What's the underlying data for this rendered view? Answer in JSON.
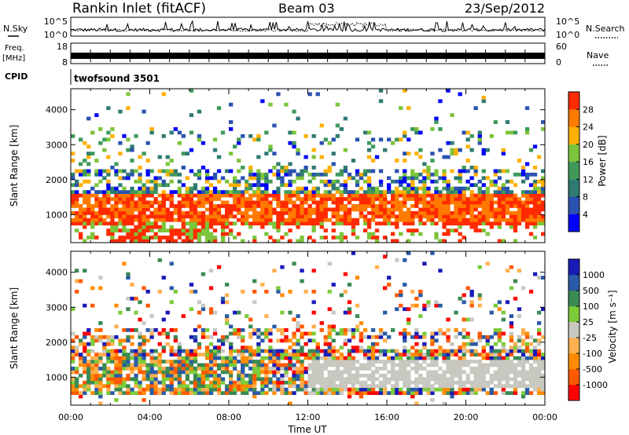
{
  "header": {
    "title": "Rankin Inlet (fitACF)",
    "beam": "Beam 03",
    "date": "23/Sep/2012"
  },
  "noise_panel": {
    "left_label": "N.Sky",
    "right_label": "N.Search",
    "ticks_left": [
      "10^5",
      "10^0"
    ],
    "ticks_right": [
      "10^5",
      "10^0"
    ]
  },
  "freq_panel": {
    "left_label_1": "Freq.",
    "left_label_2": "[MHz]",
    "right_label": "Nave",
    "ticks_left": [
      "18",
      "8"
    ],
    "ticks_right": [
      "60",
      "0"
    ]
  },
  "cpid": {
    "label": "CPID",
    "value": "twofsound 3501"
  },
  "chart_data": [
    {
      "type": "heatmap",
      "name": "power",
      "ylabel": "Slant Range [km]",
      "y_ticks": [
        1000,
        2000,
        3000,
        4000
      ],
      "ylim": [
        200,
        4600
      ],
      "xlim_hours": [
        0,
        24
      ],
      "colorbar_label": "Power [dB]",
      "colorbar_ticks": [
        "4",
        "8",
        "12",
        "16",
        "20",
        "24",
        "28"
      ],
      "colorbar_colors": [
        "#0000ff",
        "#2a52b0",
        "#2f7a72",
        "#3f9a5a",
        "#7cc43a",
        "#ffb000",
        "#ff7a00",
        "#ff2a00"
      ]
    },
    {
      "type": "heatmap",
      "name": "velocity",
      "ylabel": "Slant Range [km]",
      "y_ticks": [
        1000,
        2000,
        3000,
        4000
      ],
      "ylim": [
        200,
        4600
      ],
      "xlim_hours": [
        0,
        24
      ],
      "colorbar_label": "Velocity [m s⁻¹]",
      "colorbar_ticks": [
        "-1000",
        "-500",
        "-100",
        "-25",
        "25",
        "100",
        "500",
        "1000"
      ],
      "colorbar_colors": [
        "#ff0000",
        "#ff5a00",
        "#ff8c00",
        "#ffb050",
        "#c8c8c0",
        "#7ccc3a",
        "#3a8a52",
        "#2a5aa8",
        "#1a1ab8"
      ]
    }
  ],
  "x_axis": {
    "label": "Time UT",
    "ticks": [
      "00:00",
      "04:00",
      "08:00",
      "12:00",
      "16:00",
      "20:00",
      "00:00"
    ]
  },
  "colors": {
    "power_main": "#ff2a00",
    "velocity_ground": "#c8c8c0"
  }
}
